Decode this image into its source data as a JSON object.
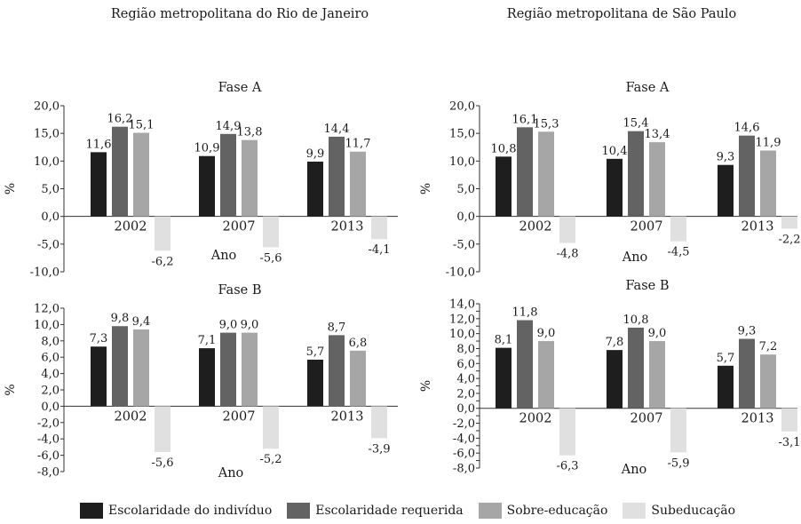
{
  "regions": [
    "Região metropolitana do Rio de Janeiro",
    "Região metropolitana de São Paulo"
  ],
  "legend": [
    {
      "label": "Escolaridade do indivíduo",
      "color": "#1e1e1e"
    },
    {
      "label": "Escolaridade requerida",
      "color": "#636363"
    },
    {
      "label": "Sobre-educação",
      "color": "#a6a6a6"
    },
    {
      "label": "Subeducação",
      "color": "#e0e0e0"
    }
  ],
  "chart_data": [
    {
      "type": "bar",
      "title": "Fase A",
      "region": "Região metropolitana do Rio de Janeiro",
      "ylabel": "%",
      "xlabel": "Ano",
      "ylim": [
        -10,
        20
      ],
      "ytick_step": 5,
      "yticks": [
        "20,0",
        "15,0",
        "10,0",
        "5,0",
        "0,0",
        "-5,0",
        "-10,0"
      ],
      "categories": [
        "2002",
        "2007",
        "2013"
      ],
      "series": [
        {
          "name": "Escolaridade do indivíduo",
          "values": [
            11.6,
            10.9,
            9.9
          ],
          "labels": [
            "11,6",
            "10,9",
            "9,9"
          ]
        },
        {
          "name": "Escolaridade requerida",
          "values": [
            16.2,
            14.9,
            14.4
          ],
          "labels": [
            "16,2",
            "14,9",
            "14,4"
          ]
        },
        {
          "name": "Sobre-educação",
          "values": [
            15.1,
            13.8,
            11.7
          ],
          "labels": [
            "15,1",
            "13,8",
            "11,7"
          ]
        },
        {
          "name": "Subeducação",
          "values": [
            -6.2,
            -5.6,
            -4.1
          ],
          "labels": [
            "-6,2",
            "-5,6",
            "-4,1"
          ]
        }
      ]
    },
    {
      "type": "bar",
      "title": "Fase A",
      "region": "Região metropolitana de São Paulo",
      "ylabel": "%",
      "xlabel": "Ano",
      "ylim": [
        -10,
        20
      ],
      "ytick_step": 5,
      "yticks": [
        "20,0",
        "15,0",
        "10,0",
        "5,0",
        "0,0",
        "-5,0",
        "-10,0"
      ],
      "categories": [
        "2002",
        "2007",
        "2013"
      ],
      "series": [
        {
          "name": "Escolaridade do indivíduo",
          "values": [
            10.8,
            10.4,
            9.3
          ],
          "labels": [
            "10,8",
            "10,4",
            "9,3"
          ]
        },
        {
          "name": "Escolaridade requerida",
          "values": [
            16.1,
            15.4,
            14.6
          ],
          "labels": [
            "16,1",
            "15,4",
            "14,6"
          ]
        },
        {
          "name": "Sobre-educação",
          "values": [
            15.3,
            13.4,
            11.9
          ],
          "labels": [
            "15,3",
            "13,4",
            "11,9"
          ]
        },
        {
          "name": "Subeducação",
          "values": [
            -4.8,
            -4.5,
            -2.2
          ],
          "labels": [
            "-4,8",
            "-4,5",
            "-2,2"
          ]
        }
      ]
    },
    {
      "type": "bar",
      "title": "Fase B",
      "region": "Região metropolitana do Rio de Janeiro",
      "ylabel": "%",
      "xlabel": "Ano",
      "ylim": [
        -8,
        12
      ],
      "ytick_step": 2,
      "yticks": [
        "12,0",
        "10,0",
        "8,0",
        "6,0",
        "4,0",
        "2,0",
        "0,0",
        "-2,0",
        "-4,0",
        "-6,0",
        "-8,0"
      ],
      "categories": [
        "2002",
        "2007",
        "2013"
      ],
      "series": [
        {
          "name": "Escolaridade do indivíduo",
          "values": [
            7.3,
            7.1,
            5.7
          ],
          "labels": [
            "7,3",
            "7,1",
            "5,7"
          ]
        },
        {
          "name": "Escolaridade requerida",
          "values": [
            9.8,
            9.0,
            8.7
          ],
          "labels": [
            "9,8",
            "9,0",
            "8,7"
          ]
        },
        {
          "name": "Sobre-educação",
          "values": [
            9.4,
            9.0,
            6.8
          ],
          "labels": [
            "9,4",
            "9,0",
            "6,8"
          ]
        },
        {
          "name": "Subeducação",
          "values": [
            -5.6,
            -5.2,
            -3.9
          ],
          "labels": [
            "-5,6",
            "-5,2",
            "-3,9"
          ]
        }
      ]
    },
    {
      "type": "bar",
      "title": "Fase B",
      "region": "Região metropolitana de São Paulo",
      "ylabel": "%",
      "xlabel": "Ano",
      "ylim": [
        -8,
        14
      ],
      "ytick_step": 1,
      "yticks": [
        "14,0",
        "12,0",
        "10,0",
        "8,0",
        "6,0",
        "4,0",
        "2,0",
        "0,0",
        "-2,0",
        "-4,0",
        "-6,0",
        "-8,0"
      ],
      "categories": [
        "2002",
        "2007",
        "2013"
      ],
      "series": [
        {
          "name": "Escolaridade do indivíduo",
          "values": [
            8.1,
            7.8,
            5.7
          ],
          "labels": [
            "8,1",
            "7,8",
            "5,7"
          ]
        },
        {
          "name": "Escolaridade requerida",
          "values": [
            11.8,
            10.8,
            9.3
          ],
          "labels": [
            "11,8",
            "10,8",
            "9,3"
          ]
        },
        {
          "name": "Sobre-educação",
          "values": [
            9.0,
            9.0,
            7.2
          ],
          "labels": [
            "9,0",
            "9,0",
            "7,2"
          ]
        },
        {
          "name": "Subeducação",
          "values": [
            -6.3,
            -5.9,
            -3.1
          ],
          "labels": [
            "-6,3",
            "-5,9",
            "-3,1"
          ]
        }
      ]
    }
  ]
}
